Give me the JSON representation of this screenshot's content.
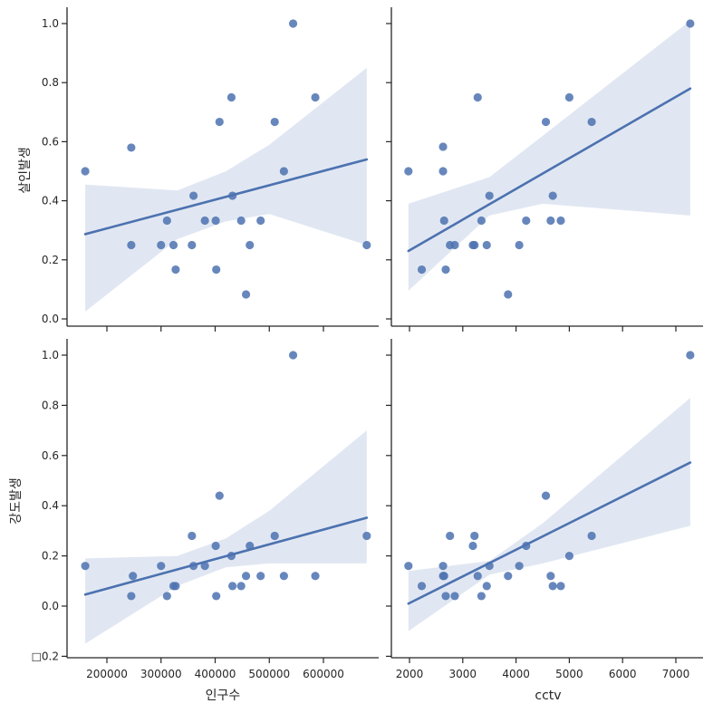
{
  "figure": {
    "x_titles": [
      "인구수",
      "cctv"
    ],
    "y_titles": [
      "살인발생",
      "강도발생"
    ],
    "x_ticks": [
      [
        "200000",
        "300000",
        "400000",
        "500000",
        "600000"
      ],
      [
        "2000",
        "3000",
        "4000",
        "5000",
        "6000",
        "7000"
      ]
    ],
    "y_ticks": [
      [
        "0.0",
        "0.2",
        "0.4",
        "0.6",
        "0.8",
        "1.0"
      ],
      [
        "□0.2",
        "0.0",
        "0.2",
        "0.4",
        "0.6",
        "0.8",
        "1.0"
      ]
    ]
  },
  "colors": {
    "points": "#4c72b0",
    "line": "#4c72b0",
    "band": "#dce3f0",
    "axes": "#262626"
  },
  "chart_data": [
    {
      "type": "scatter",
      "regression": true,
      "xlabel": "",
      "ylabel": "살인발생",
      "xlim": [
        130000,
        700000
      ],
      "ylim": [
        -0.02,
        1.05
      ],
      "points": [
        [
          160000,
          0.5
        ],
        [
          245000,
          0.58
        ],
        [
          245000,
          0.25
        ],
        [
          300000,
          0.25
        ],
        [
          311000,
          0.333
        ],
        [
          323000,
          0.25
        ],
        [
          327000,
          0.167
        ],
        [
          357000,
          0.25
        ],
        [
          360000,
          0.417
        ],
        [
          381000,
          0.333
        ],
        [
          401000,
          0.333
        ],
        [
          402000,
          0.167
        ],
        [
          408000,
          0.667
        ],
        [
          430000,
          0.75
        ],
        [
          432000,
          0.417
        ],
        [
          448000,
          0.333
        ],
        [
          457000,
          0.083
        ],
        [
          464000,
          0.25
        ],
        [
          484000,
          0.333
        ],
        [
          510000,
          0.667
        ],
        [
          527000,
          0.5
        ],
        [
          544000,
          1.0
        ],
        [
          585000,
          0.75
        ],
        [
          680000,
          0.25
        ]
      ],
      "fit_line": [
        [
          160000,
          0.287
        ],
        [
          680000,
          0.54
        ]
      ],
      "ci_band": {
        "x": [
          160000,
          330000,
          420000,
          500000,
          680000
        ],
        "upper": [
          0.455,
          0.435,
          0.5,
          0.59,
          0.85
        ],
        "lower": [
          0.025,
          0.27,
          0.33,
          0.355,
          0.25
        ]
      }
    },
    {
      "type": "scatter",
      "regression": true,
      "xlabel": "",
      "ylabel": "",
      "xlim": [
        1680,
        7420
      ],
      "ylim": [
        -0.02,
        1.05
      ],
      "points": [
        [
          1980,
          0.5
        ],
        [
          2230,
          0.167
        ],
        [
          2630,
          0.583
        ],
        [
          2630,
          0.5
        ],
        [
          2650,
          0.333
        ],
        [
          2680,
          0.167
        ],
        [
          2760,
          0.25
        ],
        [
          2850,
          0.25
        ],
        [
          3190,
          0.25
        ],
        [
          3220,
          0.25
        ],
        [
          3280,
          0.75
        ],
        [
          3350,
          0.333
        ],
        [
          3450,
          0.25
        ],
        [
          3500,
          0.417
        ],
        [
          3850,
          0.083
        ],
        [
          4060,
          0.25
        ],
        [
          4190,
          0.333
        ],
        [
          4560,
          0.667
        ],
        [
          4650,
          0.333
        ],
        [
          4690,
          0.417
        ],
        [
          4840,
          0.333
        ],
        [
          5000,
          0.75
        ],
        [
          5420,
          0.667
        ],
        [
          7270,
          1.0
        ]
      ],
      "fit_line": [
        [
          1980,
          0.23
        ],
        [
          7270,
          0.78
        ]
      ],
      "ci_band": {
        "x": [
          1980,
          3500,
          4500,
          7270
        ],
        "upper": [
          0.39,
          0.48,
          0.62,
          1.01
        ],
        "lower": [
          0.095,
          0.35,
          0.39,
          0.35
        ]
      }
    },
    {
      "type": "scatter",
      "regression": true,
      "xlabel": "인구수",
      "ylabel": "강도발생",
      "xlim": [
        130000,
        700000
      ],
      "ylim": [
        -0.2,
        1.05
      ],
      "points": [
        [
          160000,
          0.16
        ],
        [
          245000,
          0.04
        ],
        [
          248000,
          0.12
        ],
        [
          300000,
          0.16
        ],
        [
          311000,
          0.04
        ],
        [
          323000,
          0.08
        ],
        [
          327000,
          0.08
        ],
        [
          357000,
          0.28
        ],
        [
          360000,
          0.16
        ],
        [
          381000,
          0.16
        ],
        [
          401000,
          0.24
        ],
        [
          402000,
          0.04
        ],
        [
          408000,
          0.44
        ],
        [
          430000,
          0.2
        ],
        [
          432000,
          0.08
        ],
        [
          448000,
          0.08
        ],
        [
          457000,
          0.12
        ],
        [
          464000,
          0.24
        ],
        [
          484000,
          0.12
        ],
        [
          510000,
          0.28
        ],
        [
          527000,
          0.12
        ],
        [
          544000,
          1.0
        ],
        [
          585000,
          0.12
        ],
        [
          680000,
          0.28
        ]
      ],
      "fit_line": [
        [
          160000,
          0.046
        ],
        [
          680000,
          0.352
        ]
      ],
      "ci_band": {
        "x": [
          160000,
          330000,
          420000,
          500000,
          680000
        ],
        "upper": [
          0.19,
          0.2,
          0.27,
          0.38,
          0.7
        ],
        "lower": [
          -0.15,
          0.08,
          0.155,
          0.17,
          0.17
        ]
      }
    },
    {
      "type": "scatter",
      "regression": true,
      "xlabel": "cctv",
      "ylabel": "",
      "xlim": [
        1680,
        7420
      ],
      "ylim": [
        -0.2,
        1.05
      ],
      "points": [
        [
          1980,
          0.16
        ],
        [
          2230,
          0.08
        ],
        [
          2630,
          0.12
        ],
        [
          2630,
          0.16
        ],
        [
          2650,
          0.12
        ],
        [
          2680,
          0.04
        ],
        [
          2760,
          0.28
        ],
        [
          2850,
          0.04
        ],
        [
          3190,
          0.24
        ],
        [
          3220,
          0.28
        ],
        [
          3280,
          0.12
        ],
        [
          3350,
          0.04
        ],
        [
          3450,
          0.08
        ],
        [
          3500,
          0.16
        ],
        [
          3850,
          0.12
        ],
        [
          4060,
          0.16
        ],
        [
          4190,
          0.24
        ],
        [
          4560,
          0.44
        ],
        [
          4650,
          0.12
        ],
        [
          4690,
          0.08
        ],
        [
          4840,
          0.08
        ],
        [
          5000,
          0.2
        ],
        [
          5420,
          0.28
        ],
        [
          7270,
          1.0
        ]
      ],
      "fit_line": [
        [
          1980,
          0.01
        ],
        [
          7270,
          0.572
        ]
      ],
      "ci_band": {
        "x": [
          1980,
          3500,
          4500,
          7270
        ],
        "upper": [
          0.14,
          0.18,
          0.33,
          0.83
        ],
        "lower": [
          -0.1,
          0.125,
          0.17,
          0.32
        ]
      }
    }
  ]
}
